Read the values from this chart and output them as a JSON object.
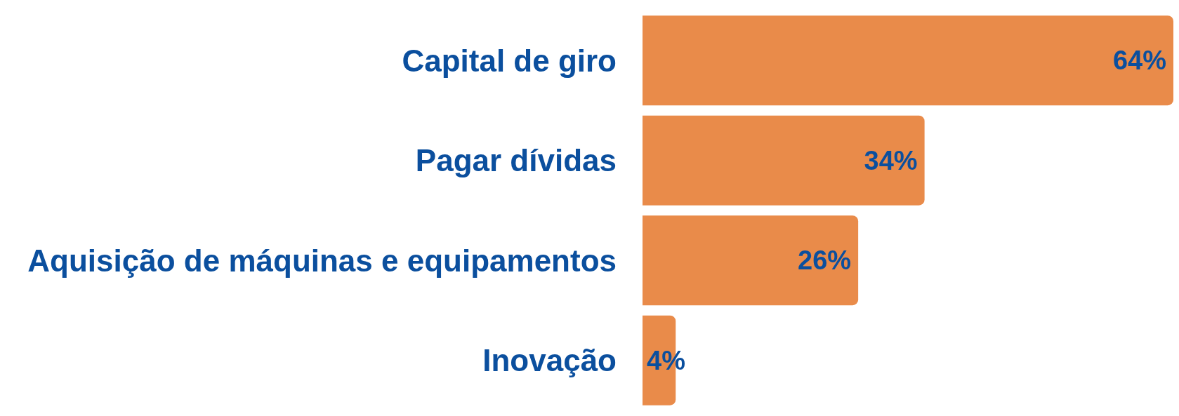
{
  "chart_data": {
    "type": "bar",
    "orientation": "horizontal",
    "categories": [
      "Capital de giro",
      "Pagar dívidas",
      "Aquisição de máquinas e equipamentos",
      "Inovação"
    ],
    "values": [
      64,
      34,
      26,
      4
    ],
    "color": "#e98b4a",
    "value_labels": [
      "64%",
      "34%",
      "26%",
      "4%"
    ]
  }
}
